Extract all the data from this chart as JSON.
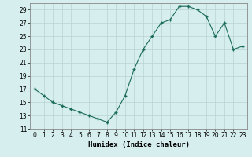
{
  "x": [
    0,
    1,
    2,
    3,
    4,
    5,
    6,
    7,
    8,
    9,
    10,
    11,
    12,
    13,
    14,
    15,
    16,
    17,
    18,
    19,
    20,
    21,
    22,
    23
  ],
  "y": [
    17,
    16,
    15,
    14.5,
    14,
    13.5,
    13,
    12.5,
    12,
    13.5,
    16,
    20,
    23,
    25,
    27,
    27.5,
    29.5,
    29.5,
    29,
    28,
    25,
    27,
    23,
    23.5
  ],
  "xlabel": "Humidex (Indice chaleur)",
  "ylabel": "",
  "xlim": [
    -0.5,
    23.5
  ],
  "ylim": [
    11,
    30
  ],
  "yticks": [
    11,
    13,
    15,
    17,
    19,
    21,
    23,
    25,
    27,
    29
  ],
  "xticks": [
    0,
    1,
    2,
    3,
    4,
    5,
    6,
    7,
    8,
    9,
    10,
    11,
    12,
    13,
    14,
    15,
    16,
    17,
    18,
    19,
    20,
    21,
    22,
    23
  ],
  "line_color": "#1a6b5a",
  "marker_color": "#1a6b5a",
  "bg_color": "#d6eeee",
  "grid_color": "#b8d4d4",
  "label_fontsize": 6.5,
  "tick_fontsize": 5.5
}
